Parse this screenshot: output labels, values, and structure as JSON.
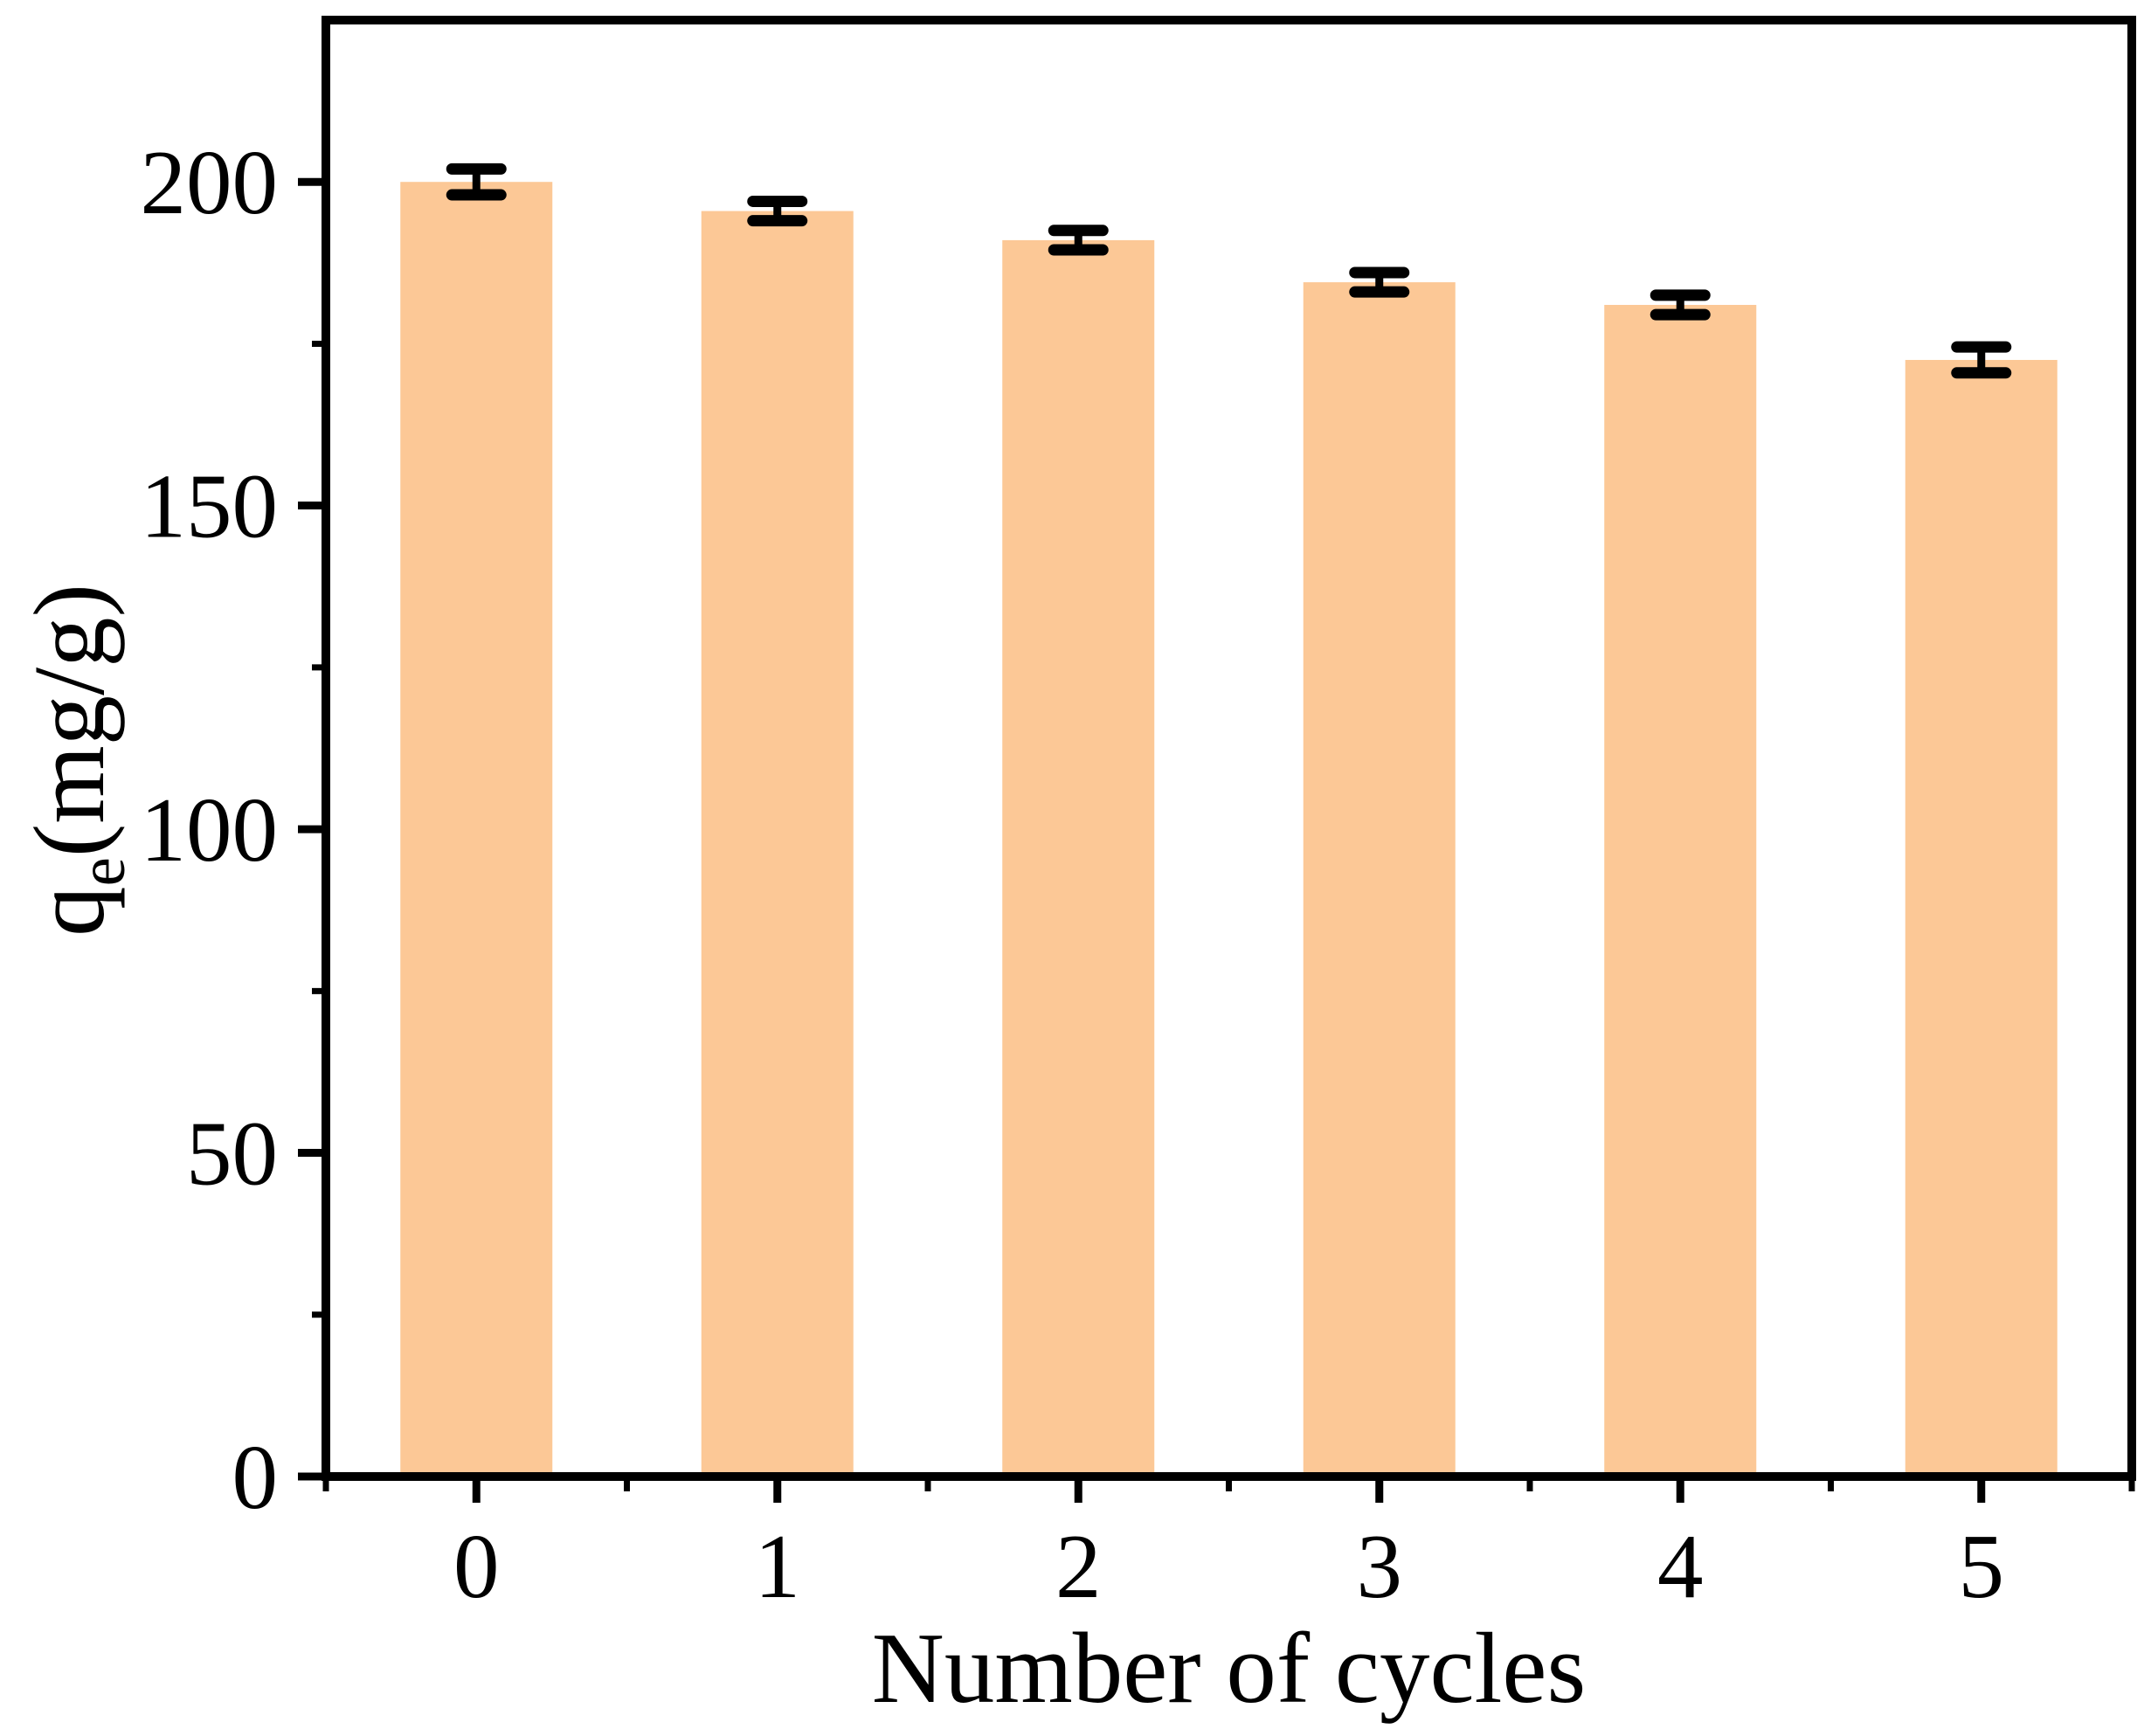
{
  "figure": {
    "background": "#ffffff",
    "frame_color": "#000000"
  },
  "chart_data": {
    "type": "bar",
    "title": "",
    "xlabel": "Number of cycles",
    "ylabel": {
      "base": "q",
      "subscript": "e",
      "unit": "(mg/g)"
    },
    "categories": [
      "0",
      "1",
      "2",
      "3",
      "4",
      "5"
    ],
    "values": [
      200,
      195.5,
      191,
      184.5,
      181,
      172.5
    ],
    "errors": [
      2,
      1.5,
      1.5,
      1.5,
      1.5,
      2
    ],
    "series_name": "qe (mg/g) vs number of cycles",
    "bar_color": "#FCC896",
    "error_color": "#000000",
    "ylim": [
      0,
      225
    ],
    "y_major_ticks": [
      0,
      50,
      100,
      150,
      200
    ],
    "y_minor_ticks": [
      25,
      75,
      125,
      175
    ],
    "x_minor_positions": [
      -0.5,
      0.5,
      1.5,
      2.5,
      3.5,
      4.5,
      5.5
    ],
    "grid": false,
    "legend": "none"
  }
}
